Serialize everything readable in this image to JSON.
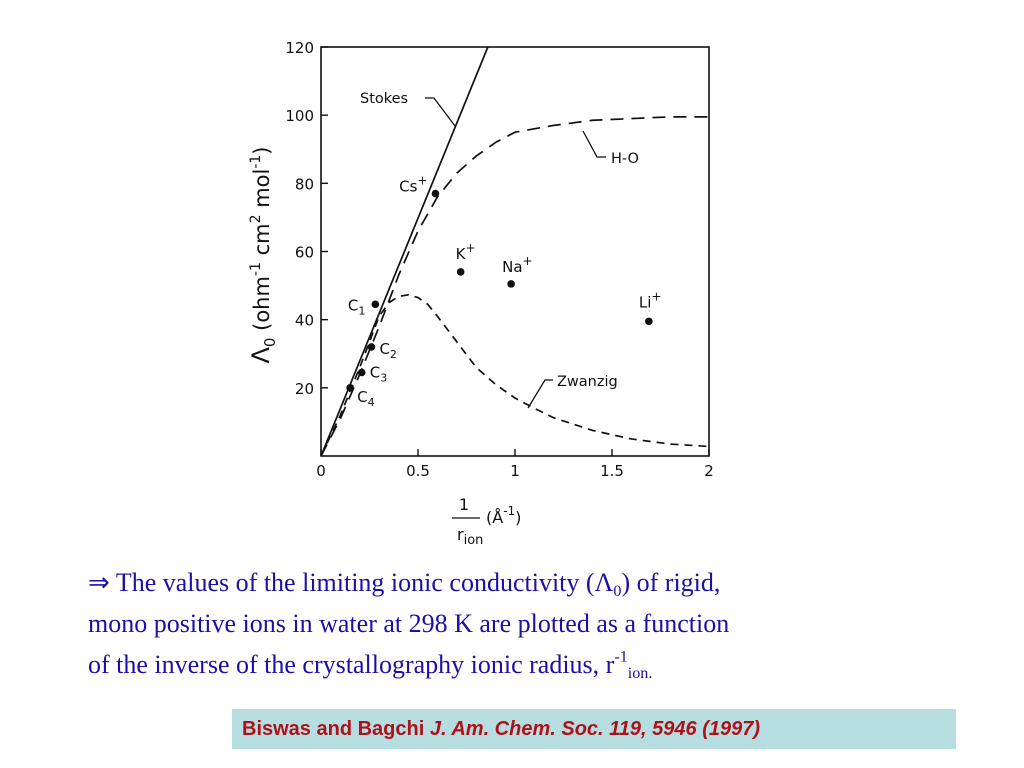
{
  "chart_data": {
    "type": "line",
    "xlabel": {
      "numerator": "1",
      "denominator": "r",
      "denominator_sub": "ion",
      "unit": "(Å",
      "unit_sup": "-1",
      "unit_close": ")"
    },
    "ylabel": {
      "parts": [
        "Λ",
        "0",
        " (ohm",
        "-1",
        " cm",
        "2",
        " mol",
        "-1",
        ")"
      ]
    },
    "xlim": [
      0,
      2
    ],
    "ylim": [
      0,
      120
    ],
    "x_ticks": [
      0,
      0.5,
      1,
      1.5,
      2
    ],
    "x_tick_labels": [
      "0",
      "0.5",
      "1",
      "1.5",
      "2"
    ],
    "y_ticks": [
      20,
      40,
      60,
      80,
      100,
      120
    ],
    "y_tick_labels": [
      "20",
      "40",
      "60",
      "80",
      "100",
      "120"
    ],
    "grid": false,
    "series": [
      {
        "name": "Stokes",
        "style": "solid",
        "x": [
          0,
          0.86
        ],
        "y": [
          0,
          120
        ]
      },
      {
        "name": "H-O",
        "style": "long-dash",
        "x": [
          0,
          0.1,
          0.2,
          0.3,
          0.4,
          0.5,
          0.6,
          0.7,
          0.8,
          0.9,
          1.0,
          1.2,
          1.4,
          1.6,
          1.8,
          2.0
        ],
        "y": [
          0,
          11,
          24,
          38,
          53,
          66,
          76,
          83,
          88,
          92,
          95,
          97,
          98.5,
          99,
          99.5,
          99.5
        ]
      },
      {
        "name": "Zwanzig",
        "style": "short-dash",
        "x": [
          0,
          0.1,
          0.2,
          0.3,
          0.35,
          0.4,
          0.45,
          0.5,
          0.55,
          0.6,
          0.7,
          0.8,
          0.9,
          1.0,
          1.1,
          1.2,
          1.4,
          1.6,
          1.8,
          2.0
        ],
        "y": [
          0,
          12,
          26,
          41,
          45,
          46.8,
          47.3,
          46.5,
          44.5,
          41,
          33.5,
          26,
          21,
          17,
          14,
          11.2,
          7.5,
          5,
          3.5,
          2.8
        ]
      }
    ],
    "points": [
      {
        "label": "C",
        "sub": "1",
        "sup": "",
        "x": 0.28,
        "y": 44.5
      },
      {
        "label": "C",
        "sub": "2",
        "sup": "",
        "x": 0.26,
        "y": 32
      },
      {
        "label": "C",
        "sub": "3",
        "sup": "",
        "x": 0.21,
        "y": 24.5
      },
      {
        "label": "C",
        "sub": "4",
        "sup": "",
        "x": 0.15,
        "y": 20
      },
      {
        "label": "Cs",
        "sub": "",
        "sup": "+",
        "x": 0.59,
        "y": 77
      },
      {
        "label": "K",
        "sub": "",
        "sup": "+",
        "x": 0.72,
        "y": 54
      },
      {
        "label": "Na",
        "sub": "",
        "sup": "+",
        "x": 0.98,
        "y": 50.5
      },
      {
        "label": "Li",
        "sub": "",
        "sup": "+",
        "x": 1.69,
        "y": 39.5
      }
    ]
  },
  "caption": {
    "arrow": "⇒",
    "line1_before": " The values of the limiting ionic conductivity (Λ",
    "line1_sub": "0",
    "line1_after": ") of rigid,",
    "line2": "mono positive ions in water at 298 K are plotted as a function",
    "line3_before": "of the inverse of the crystallography ionic radius, r",
    "line3_sup": "-1",
    "line3_sub": "ion."
  },
  "reference": {
    "authors": "Biswas and Bagchi",
    "journal": "J. Am. Chem. Soc. 119, 5946 (1997)"
  },
  "colors": {
    "caption_text": "#1b0fa8",
    "reference_text": "#b0101a",
    "reference_background": "#b6dee0"
  }
}
